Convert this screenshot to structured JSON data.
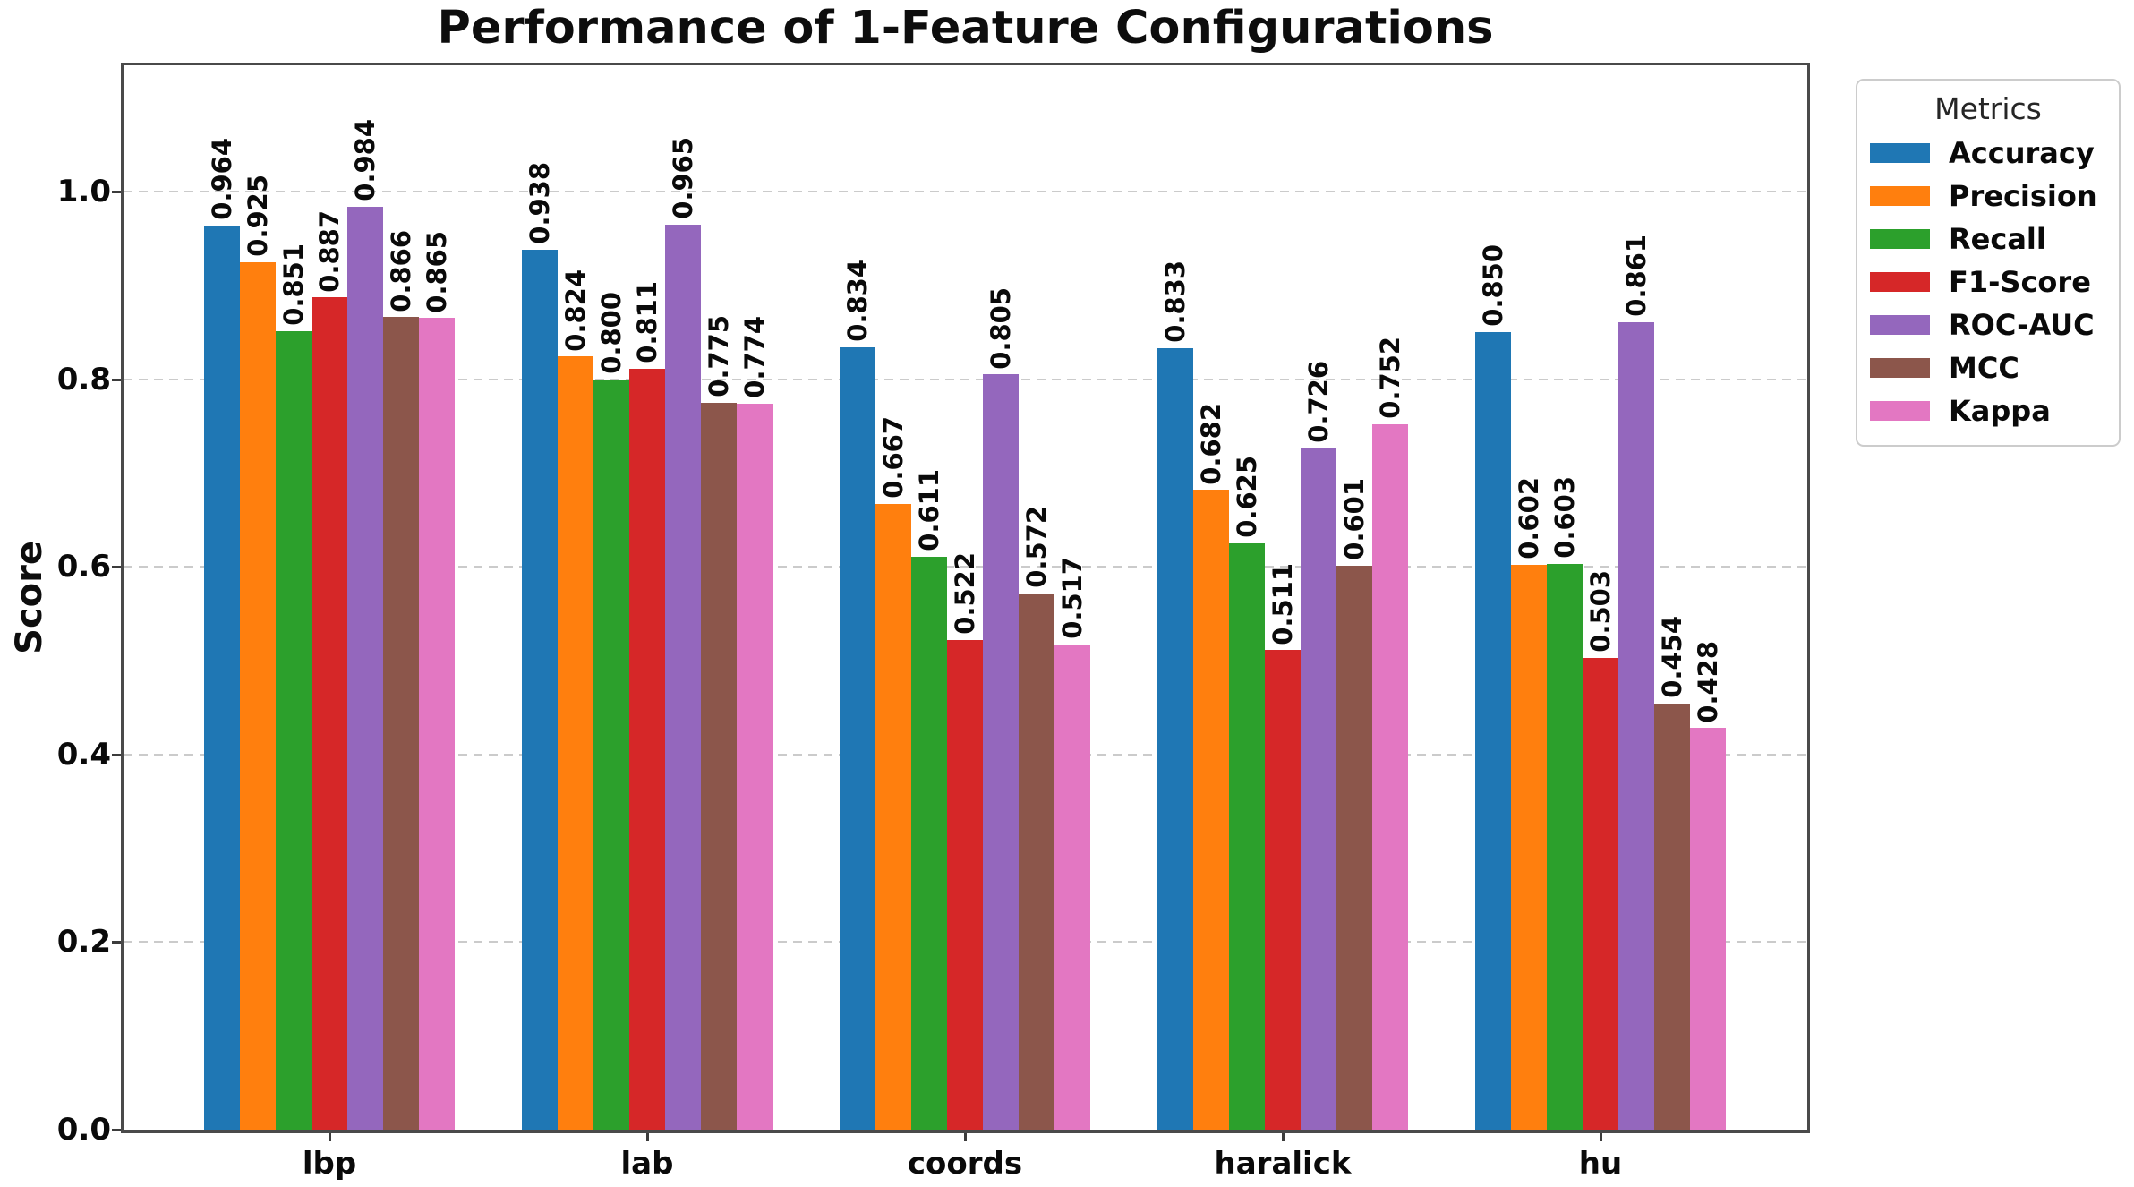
{
  "title": "Performance of 1-Feature Configurations",
  "chart_data": {
    "type": "bar",
    "title": "Performance of 1-Feature Configurations",
    "xlabel": "",
    "ylabel": "Score",
    "categories": [
      "lbp",
      "lab",
      "coords",
      "haralick",
      "hu"
    ],
    "series": [
      {
        "name": "Accuracy",
        "color": "#1f77b4",
        "values": [
          0.964,
          0.938,
          0.834,
          0.833,
          0.85
        ]
      },
      {
        "name": "Precision",
        "color": "#ff7f0e",
        "values": [
          0.925,
          0.824,
          0.667,
          0.682,
          0.602
        ]
      },
      {
        "name": "Recall",
        "color": "#2ca02c",
        "values": [
          0.851,
          0.8,
          0.611,
          0.625,
          0.603
        ]
      },
      {
        "name": "F1-Score",
        "color": "#d62728",
        "values": [
          0.887,
          0.811,
          0.522,
          0.511,
          0.503
        ]
      },
      {
        "name": "ROC-AUC",
        "color": "#9467bd",
        "values": [
          0.984,
          0.965,
          0.805,
          0.726,
          0.861
        ]
      },
      {
        "name": "MCC",
        "color": "#8c564b",
        "values": [
          0.866,
          0.775,
          0.572,
          0.601,
          0.454
        ]
      },
      {
        "name": "Kappa",
        "color": "#e377c2",
        "values": [
          0.865,
          0.774,
          0.517,
          0.752,
          0.428
        ]
      }
    ],
    "yticks": [
      0.0,
      0.2,
      0.4,
      0.6,
      0.8,
      1.0
    ],
    "ytick_labels": [
      "0.0",
      "0.2",
      "0.4",
      "0.6",
      "0.8",
      "1.0"
    ],
    "ylim": [
      0,
      1.135
    ],
    "grid": "horizontal-dashed",
    "value_label_decimals": 3,
    "legend_title": "Metrics",
    "legend_position": "upper-right-outside"
  }
}
